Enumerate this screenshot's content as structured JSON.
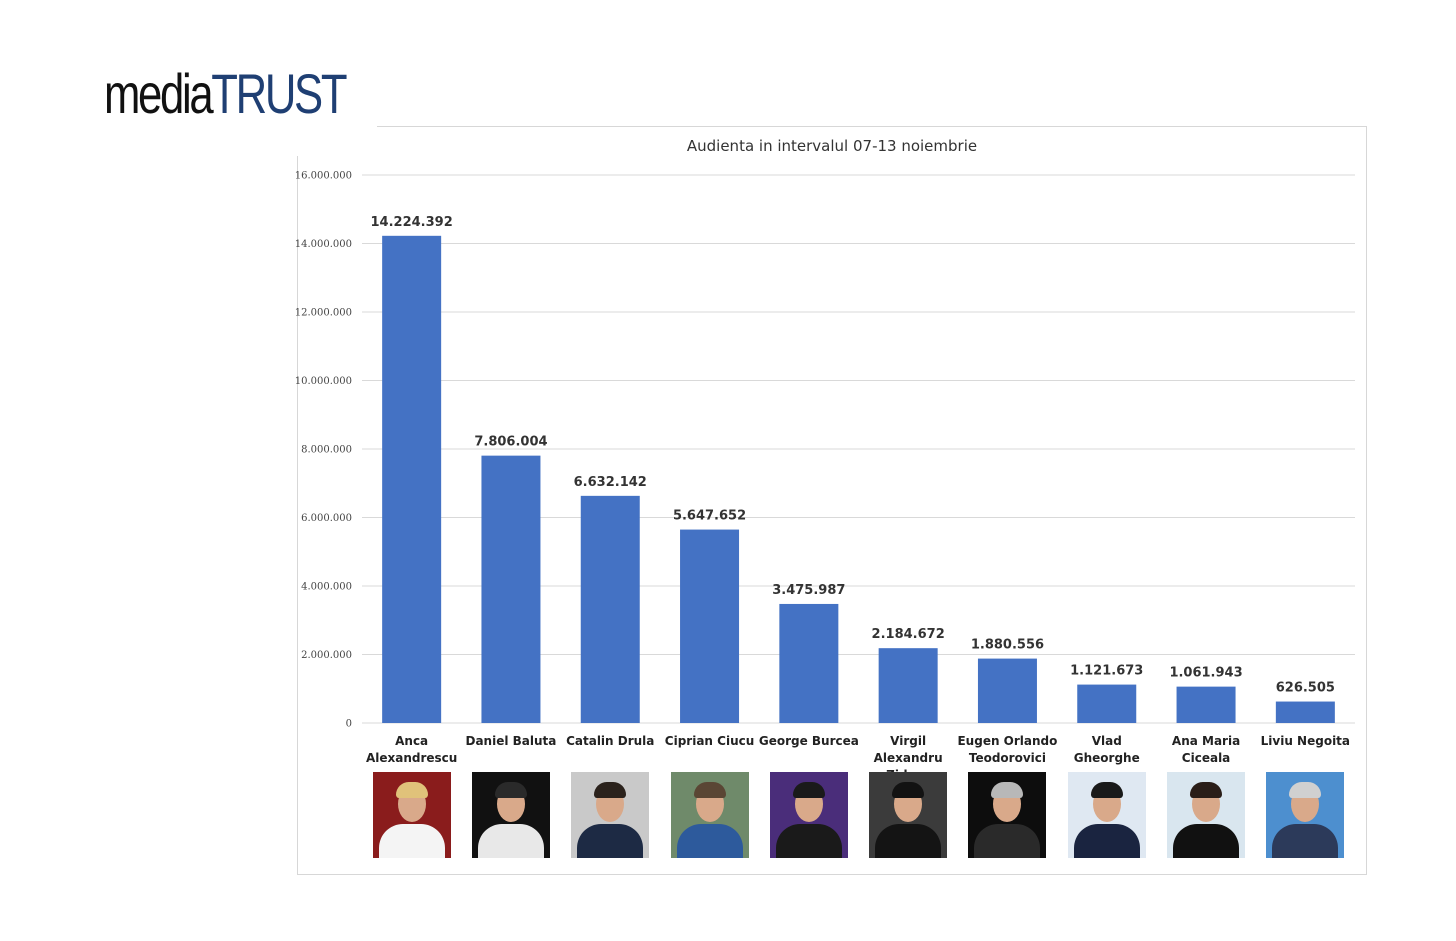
{
  "logo": {
    "media": "media",
    "trust": "TRUST"
  },
  "colors": {
    "bar": "#4472c4",
    "grid": "#d9d9d9",
    "logo_accent": "#1f3f73"
  },
  "chart_data": {
    "type": "bar",
    "title": "Audienta in intervalul 07-13 noiembrie",
    "categories": [
      "Anca Alexandrescu",
      "Daniel Baluta",
      "Catalin Drula",
      "Ciprian Ciucu",
      "George Burcea",
      "Virgil Alexandru Zidaru",
      "Eugen Orlando Teodorovici",
      "Vlad Gheorghe",
      "Ana Maria Ciceala",
      "Liviu Negoita"
    ],
    "category_lines": [
      [
        "Anca",
        "Alexandrescu"
      ],
      [
        "Daniel Baluta"
      ],
      [
        "Catalin Drula"
      ],
      [
        "Ciprian Ciucu"
      ],
      [
        "George Burcea"
      ],
      [
        "Virgil Alexandru",
        "Zidaru"
      ],
      [
        "Eugen Orlando",
        "Teodorovici"
      ],
      [
        "Vlad Gheorghe"
      ],
      [
        "Ana Maria",
        "Ciceala"
      ],
      [
        "Liviu Negoita"
      ]
    ],
    "values": [
      14224392,
      7806004,
      6632142,
      5647652,
      3475987,
      2184672,
      1880556,
      1121673,
      1061943,
      626505
    ],
    "data_labels": [
      "14.224.392",
      "7.806.004",
      "6.632.142",
      "5.647.652",
      "3.475.987",
      "2.184.672",
      "1.880.556",
      "1.121.673",
      "1.061.943",
      "626.505"
    ],
    "ylim": [
      0,
      16000000
    ],
    "yticks": [
      0,
      2000000,
      4000000,
      6000000,
      8000000,
      10000000,
      12000000,
      14000000,
      16000000
    ],
    "ytick_labels": [
      "0",
      "2.000.000",
      "4.000.000",
      "6.000.000",
      "8.000.000",
      "10.000.000",
      "12.000.000",
      "14.000.000",
      "16.000.000"
    ],
    "xlabel": "",
    "ylabel": "",
    "grid": true,
    "legend": false
  },
  "photos": [
    {
      "icon": "portrait-photo-icon",
      "bg": "#8a1c1c",
      "torso": "#f4f4f4",
      "hair": "#e0c27a"
    },
    {
      "icon": "portrait-photo-icon",
      "bg": "#111111",
      "torso": "#e8e8e8",
      "hair": "#2a2a2a"
    },
    {
      "icon": "portrait-photo-icon",
      "bg": "#c9c9c9",
      "torso": "#1d2a44",
      "hair": "#2b221c"
    },
    {
      "icon": "portrait-photo-icon",
      "bg": "#6f8a6a",
      "torso": "#2d5a9c",
      "hair": "#5a4634"
    },
    {
      "icon": "portrait-photo-icon",
      "bg": "#4a2d7a",
      "torso": "#1a1a1a",
      "hair": "#1a1a1a"
    },
    {
      "icon": "portrait-photo-icon",
      "bg": "#3b3b3b",
      "torso": "#141414",
      "hair": "#121212"
    },
    {
      "icon": "portrait-photo-icon",
      "bg": "#0d0d0d",
      "torso": "#2a2a2a",
      "hair": "#b8b8b8"
    },
    {
      "icon": "portrait-photo-icon",
      "bg": "#dfe8f2",
      "torso": "#1a2440",
      "hair": "#1a1a1a"
    },
    {
      "icon": "portrait-photo-icon",
      "bg": "#d9e6ef",
      "torso": "#111111",
      "hair": "#2a1e18"
    },
    {
      "icon": "portrait-photo-icon",
      "bg": "#4d8fcf",
      "torso": "#2c3a5a",
      "hair": "#d0d0d0"
    }
  ]
}
